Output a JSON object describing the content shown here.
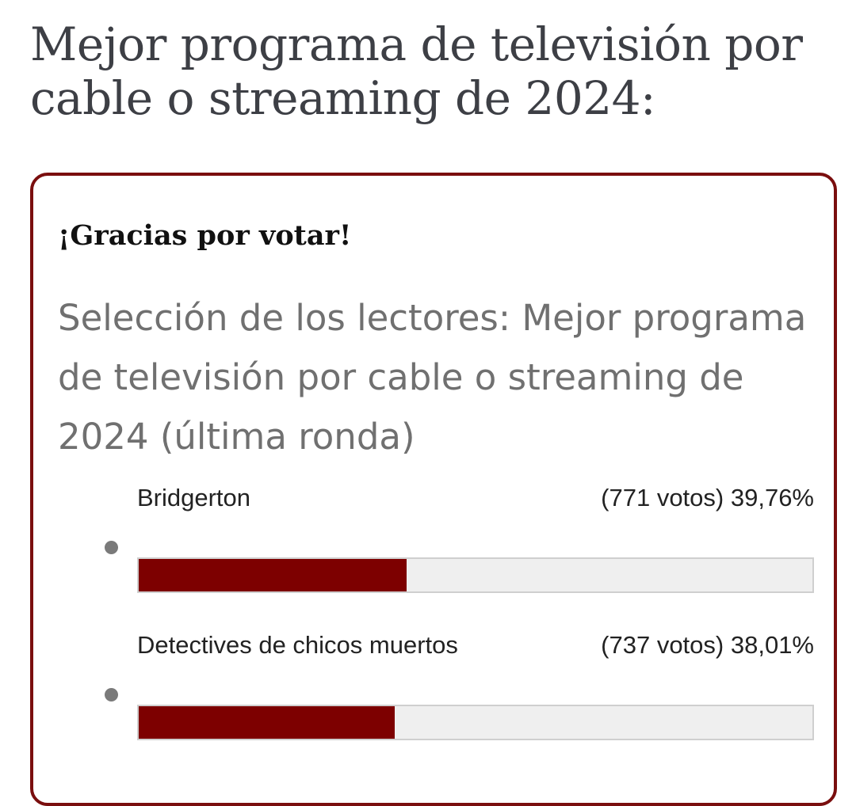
{
  "page": {
    "title": "Mejor programa de televisión por cable o streaming de 2024:"
  },
  "poll": {
    "thanks_message": "¡Gracias por votar!",
    "question": "Selección de los lectores: Mejor programa de televisión por cable o streaming de 2024 (última ronda)",
    "accent_color": "#7d0000",
    "options": [
      {
        "label": "Bridgerton",
        "votes_text": "(771 votos)",
        "percent_text": "39,76%",
        "percent": 39.76
      },
      {
        "label": "Detectives de chicos muertos",
        "votes_text": "(737 votos)",
        "percent_text": "38,01%",
        "percent": 38.01
      }
    ]
  }
}
